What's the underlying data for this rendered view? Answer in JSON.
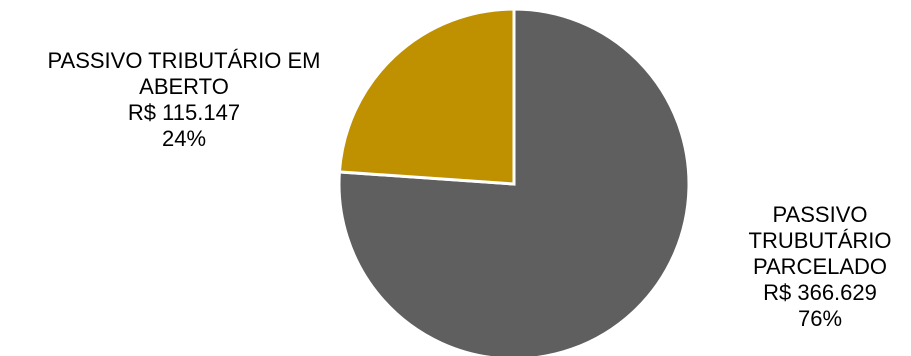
{
  "chart_data": {
    "type": "pie",
    "title": "",
    "slices": [
      {
        "label_lines": [
          "PASSIVO TRIBUTÁRIO EM",
          "ABERTO"
        ],
        "value_text": "R$  115.147",
        "percent_text": "24%",
        "value": 115147,
        "percent": 24,
        "color": "#BF9000"
      },
      {
        "label_lines": [
          "PASSIVO",
          "TRUBUTÁRIO",
          "PARCELADO"
        ],
        "value_text": "R$ 366.629",
        "percent_text": "76%",
        "value": 366629,
        "percent": 76,
        "color": "#5F5F5F"
      }
    ],
    "start_angle_deg": 0,
    "direction": "clockwise",
    "slice_border_color": "#FFFFFF"
  }
}
